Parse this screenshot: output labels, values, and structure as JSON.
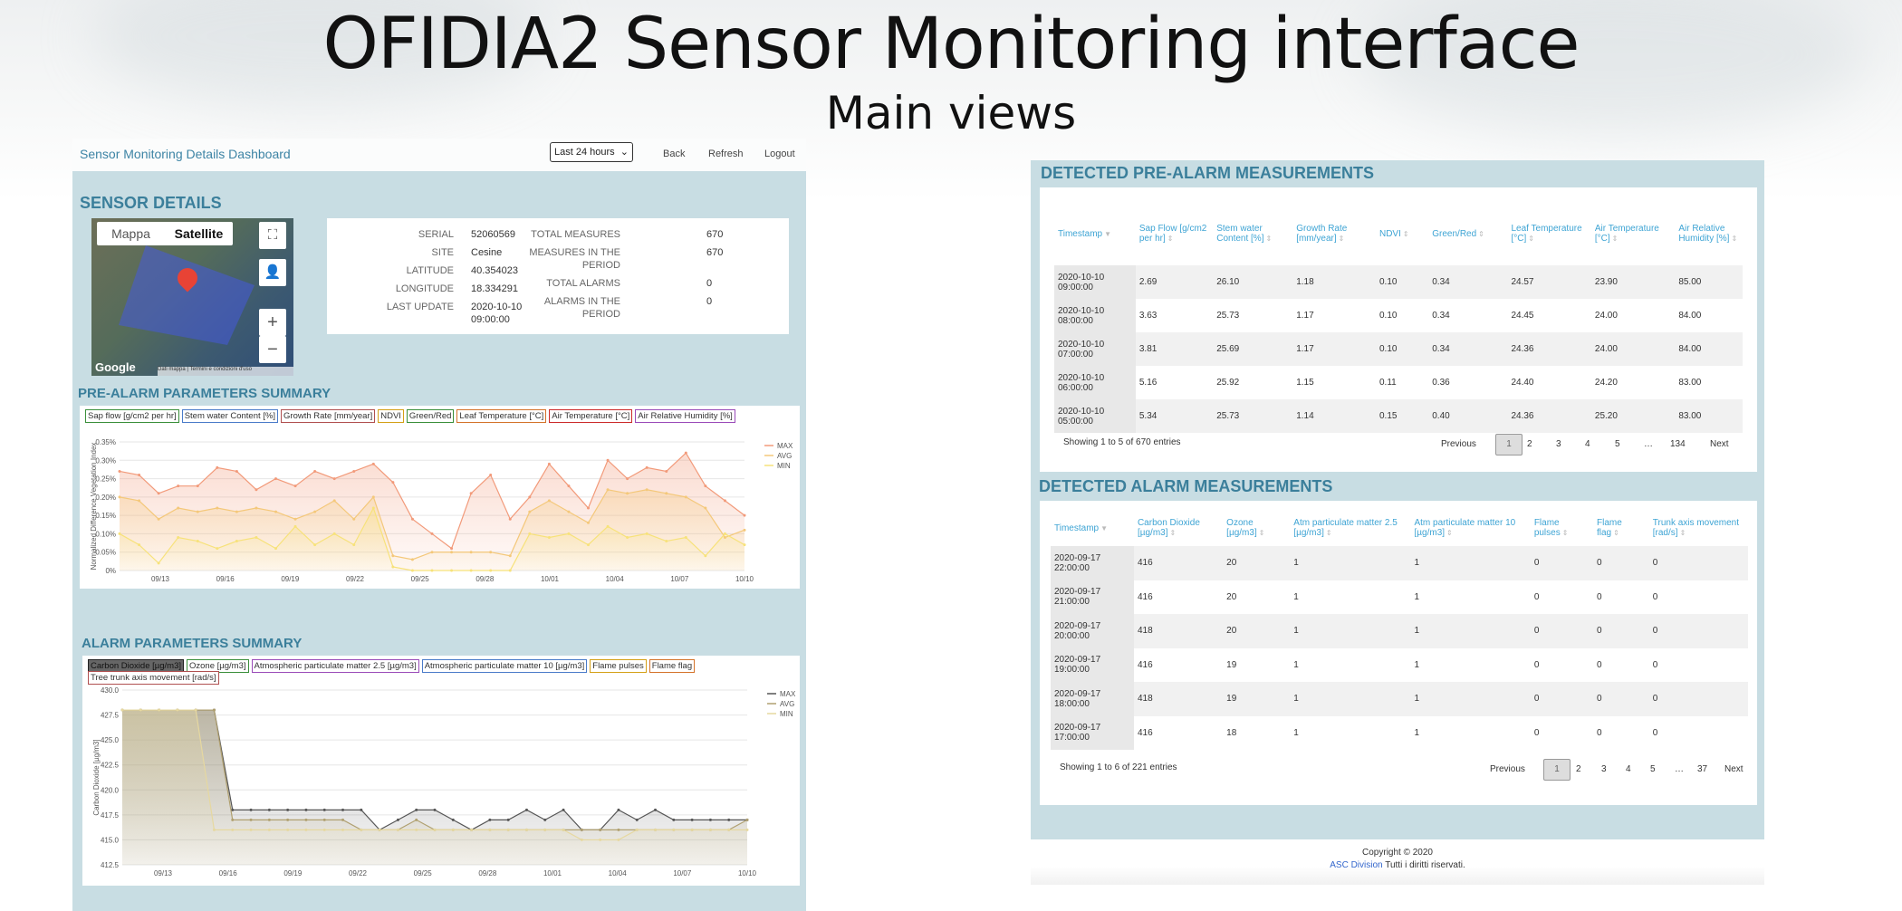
{
  "slide": {
    "title": "OFIDIA2 Sensor Monitoring interface",
    "subtitle": "Main views"
  },
  "dashboard": {
    "title": "Sensor Monitoring Details Dashboard",
    "range_select": "Last 24 hours",
    "nav": {
      "back": "Back",
      "refresh": "Refresh",
      "logout": "Logout"
    },
    "sensor_details_heading": "SENSOR DETAILS",
    "map": {
      "tab_map": "Mappa",
      "tab_satellite": "Satellite",
      "brand": "Google",
      "attribution": "Dati mappa | Termini e condizioni d'uso"
    },
    "details": {
      "serial_label": "SERIAL",
      "serial": "52060569",
      "site_label": "SITE",
      "site": "Cesine",
      "latitude_label": "LATITUDE",
      "latitude": "40.354023",
      "longitude_label": "LONGITUDE",
      "longitude": "18.334291",
      "last_update_label": "LAST UPDATE",
      "last_update_1": "2020-10-10",
      "last_update_2": "09:00:00",
      "total_measures_label": "TOTAL MEASURES",
      "total_measures": "670",
      "measures_period_label_1": "MEASURES IN THE",
      "measures_period_label_2": "PERIOD",
      "measures_period": "670",
      "total_alarms_label": "TOTAL ALARMS",
      "total_alarms": "0",
      "alarms_period_label_1": "ALARMS IN THE",
      "alarms_period_label_2": "PERIOD",
      "alarms_period": "0"
    },
    "prealarm_heading": "PRE-ALARM PARAMETERS SUMMARY",
    "prealarm_legend": [
      {
        "label": "Sap flow [g/cm2 per hr]",
        "color": "#3a8f3a"
      },
      {
        "label": "Stem water Content [%]",
        "color": "#4a7bc9"
      },
      {
        "label": "Growth Rate [mm/year]",
        "color": "#b05050"
      },
      {
        "label": "NDVI",
        "color": "#d4a017"
      },
      {
        "label": "Green/Red",
        "color": "#3a8f3a"
      },
      {
        "label": "Leaf Temperature [°C]",
        "color": "#d4732a"
      },
      {
        "label": "Air Temperature [°C]",
        "color": "#cc2b2b"
      },
      {
        "label": "Air Relative Humidity [%]",
        "color": "#9a4bb8"
      }
    ],
    "alarm_heading": "ALARM PARAMETERS SUMMARY",
    "alarm_legend": [
      {
        "label": "Carbon Dioxide [µg/m3]",
        "color": "#222"
      },
      {
        "label": "Ozone [µg/m3]",
        "color": "#3a8f3a"
      },
      {
        "label": "Atmospheric particulate matter 2.5 [µg/m3]",
        "color": "#9a4bb8"
      },
      {
        "label": "Atmospheric particulate matter 10 [µg/m3]",
        "color": "#4a7bc9"
      },
      {
        "label": "Flame pulses",
        "color": "#d4a017"
      },
      {
        "label": "Flame flag",
        "color": "#d4732a"
      },
      {
        "label": "Tree trunk axis movement [rad/s]",
        "color": "#b05050"
      }
    ]
  },
  "chart_data": [
    {
      "type": "area",
      "ylabel": "Normalized Difference Vegetation Index",
      "ylim": [
        0,
        0.35
      ],
      "yticks": [
        "0%",
        "0.05%",
        "0.10%",
        "0.15%",
        "0.20%",
        "0.25%",
        "0.30%",
        "0.35%"
      ],
      "xticks": [
        "09/13",
        "09/16",
        "09/19",
        "09/22",
        "09/25",
        "09/28",
        "10/01",
        "10/04",
        "10/07",
        "10/10"
      ],
      "legend": "top-right",
      "series": [
        {
          "name": "MAX",
          "color": "#f29a7a",
          "values": [
            0.27,
            0.26,
            0.21,
            0.23,
            0.23,
            0.28,
            0.27,
            0.22,
            0.25,
            0.23,
            0.27,
            0.25,
            0.27,
            0.29,
            0.24,
            0.14,
            0.1,
            0.06,
            0.21,
            0.26,
            0.14,
            0.2,
            0.29,
            0.23,
            0.17,
            0.3,
            0.25,
            0.28,
            0.27,
            0.32,
            0.23,
            0.19,
            0.15
          ]
        },
        {
          "name": "AVG",
          "color": "#f4c87a",
          "values": [
            0.2,
            0.19,
            0.14,
            0.17,
            0.16,
            0.17,
            0.16,
            0.17,
            0.16,
            0.14,
            0.16,
            0.19,
            0.14,
            0.2,
            0.04,
            0.03,
            0.05,
            0.05,
            0.05,
            0.05,
            0.04,
            0.16,
            0.19,
            0.16,
            0.13,
            0.22,
            0.21,
            0.22,
            0.21,
            0.2,
            0.17,
            0.09,
            0.11
          ]
        },
        {
          "name": "MIN",
          "color": "#f7e27a",
          "values": [
            0.1,
            0.07,
            0.02,
            0.09,
            0.08,
            0.06,
            0.08,
            0.09,
            0.06,
            0.12,
            0.07,
            0.1,
            0.07,
            0.17,
            0.01,
            0.0,
            0.0,
            0.0,
            0.0,
            0.0,
            0.0,
            0.1,
            0.09,
            0.1,
            0.07,
            0.12,
            0.09,
            0.1,
            0.08,
            0.09,
            0.04,
            0.1,
            0.07
          ]
        }
      ]
    },
    {
      "type": "area",
      "ylabel": "Carbon Dioxide [µg/m3]",
      "ylim": [
        412.5,
        430
      ],
      "yticks": [
        "412.5",
        "415.0",
        "417.5",
        "420.0",
        "422.5",
        "425.0",
        "427.5",
        "430.0"
      ],
      "xticks": [
        "09/13",
        "09/16",
        "09/19",
        "09/22",
        "09/25",
        "09/28",
        "10/01",
        "10/04",
        "10/07",
        "10/10"
      ],
      "legend": "top-right",
      "series": [
        {
          "name": "MAX",
          "color": "#555555",
          "values": [
            428,
            428,
            428,
            428,
            428,
            428,
            418,
            418,
            418,
            418,
            418,
            418,
            418,
            418,
            416,
            417,
            418,
            418,
            417,
            416,
            417,
            417,
            418,
            417,
            418,
            416,
            416,
            418,
            417,
            418,
            417,
            417,
            417,
            417,
            417
          ]
        },
        {
          "name": "AVG",
          "color": "#b0a070",
          "values": [
            428,
            428,
            428,
            428,
            428,
            428,
            417,
            417,
            417,
            417,
            417,
            417,
            417,
            416,
            416,
            416,
            417,
            416,
            416,
            416,
            416,
            416,
            416,
            416,
            416,
            416,
            416,
            416,
            416,
            416,
            416,
            416,
            416,
            416,
            417
          ]
        },
        {
          "name": "MIN",
          "color": "#e6d8a0",
          "values": [
            428,
            428,
            428,
            428,
            428,
            416,
            416,
            416,
            416,
            416,
            416,
            416,
            416,
            416,
            416,
            416,
            416,
            416,
            416,
            416,
            416,
            416,
            416,
            416,
            416,
            415,
            415,
            415,
            416,
            416,
            416,
            416,
            416,
            416,
            416
          ]
        }
      ]
    }
  ],
  "prealarm_table": {
    "heading": "DETECTED PRE-ALARM MEASUREMENTS",
    "columns": [
      "Timestamp",
      "Sap Flow [g/cm2 per hr]",
      "Stem water Content [%]",
      "Growth Rate [mm/year]",
      "NDVI",
      "Green/Red",
      "Leaf Temperature [°C]",
      "Air Temperature [°C]",
      "Air Relative Humidity [%]"
    ],
    "rows": [
      [
        "2020-10-10",
        "09:00:00",
        "2.69",
        "26.10",
        "1.18",
        "0.10",
        "0.34",
        "24.57",
        "23.90",
        "85.00"
      ],
      [
        "2020-10-10",
        "08:00:00",
        "3.63",
        "25.73",
        "1.17",
        "0.10",
        "0.34",
        "24.45",
        "24.00",
        "84.00"
      ],
      [
        "2020-10-10",
        "07:00:00",
        "3.81",
        "25.69",
        "1.17",
        "0.10",
        "0.34",
        "24.36",
        "24.00",
        "84.00"
      ],
      [
        "2020-10-10",
        "06:00:00",
        "5.16",
        "25.92",
        "1.15",
        "0.11",
        "0.36",
        "24.40",
        "24.20",
        "83.00"
      ],
      [
        "2020-10-10",
        "05:00:00",
        "5.34",
        "25.73",
        "1.14",
        "0.15",
        "0.40",
        "24.36",
        "25.20",
        "83.00"
      ]
    ],
    "info": "Showing 1 to 5 of 670 entries",
    "pager": [
      "Previous",
      "1",
      "2",
      "3",
      "4",
      "5",
      "…",
      "134",
      "Next"
    ]
  },
  "alarm_table": {
    "heading": "DETECTED ALARM MEASUREMENTS",
    "columns": [
      "Timestamp",
      "Carbon Dioxide [µg/m3]",
      "Ozone [µg/m3]",
      "Atm particulate matter 2.5 [µg/m3]",
      "Atm particulate matter 10 [µg/m3]",
      "Flame pulses",
      "Flame flag",
      "Trunk axis movement [rad/s]"
    ],
    "rows": [
      [
        "2020-09-17",
        "22:00:00",
        "416",
        "20",
        "1",
        "1",
        "0",
        "0",
        "0"
      ],
      [
        "2020-09-17",
        "21:00:00",
        "416",
        "20",
        "1",
        "1",
        "0",
        "0",
        "0"
      ],
      [
        "2020-09-17",
        "20:00:00",
        "418",
        "20",
        "1",
        "1",
        "0",
        "0",
        "0"
      ],
      [
        "2020-09-17",
        "19:00:00",
        "416",
        "19",
        "1",
        "1",
        "0",
        "0",
        "0"
      ],
      [
        "2020-09-17",
        "18:00:00",
        "418",
        "19",
        "1",
        "1",
        "0",
        "0",
        "0"
      ],
      [
        "2020-09-17",
        "17:00:00",
        "416",
        "18",
        "1",
        "1",
        "0",
        "0",
        "0"
      ]
    ],
    "info": "Showing 1 to 6 of 221 entries",
    "pager": [
      "Previous",
      "1",
      "2",
      "3",
      "4",
      "5",
      "…",
      "37",
      "Next"
    ]
  },
  "footer": {
    "copyright": "Copyright © 2020",
    "org": "ASC Division",
    "rights": "Tutti i diritti riservati."
  }
}
